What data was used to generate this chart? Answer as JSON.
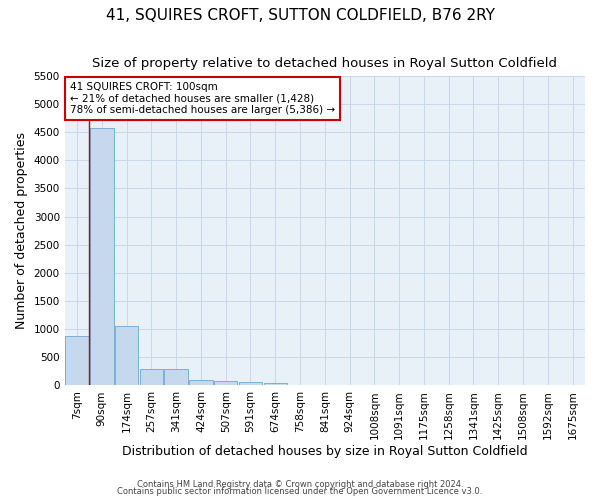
{
  "title": "41, SQUIRES CROFT, SUTTON COLDFIELD, B76 2RY",
  "subtitle": "Size of property relative to detached houses in Royal Sutton Coldfield",
  "xlabel": "Distribution of detached houses by size in Royal Sutton Coldfield",
  "ylabel": "Number of detached properties",
  "footnote1": "Contains HM Land Registry data © Crown copyright and database right 2024.",
  "footnote2": "Contains public sector information licensed under the Open Government Licence v3.0.",
  "bar_labels": [
    "7sqm",
    "90sqm",
    "174sqm",
    "257sqm",
    "341sqm",
    "424sqm",
    "507sqm",
    "591sqm",
    "674sqm",
    "758sqm",
    "841sqm",
    "924sqm",
    "1008sqm",
    "1091sqm",
    "1175sqm",
    "1258sqm",
    "1341sqm",
    "1425sqm",
    "1508sqm",
    "1592sqm",
    "1675sqm"
  ],
  "bar_values": [
    880,
    4570,
    1060,
    295,
    290,
    95,
    80,
    55,
    50,
    0,
    0,
    0,
    0,
    0,
    0,
    0,
    0,
    0,
    0,
    0,
    0
  ],
  "bar_color": "#c5d8ed",
  "bar_edge_color": "#7aafd4",
  "annotation_box_text": "41 SQUIRES CROFT: 100sqm\n← 21% of detached houses are smaller (1,428)\n78% of semi-detached houses are larger (5,386) →",
  "annotation_box_color": "#ffffff",
  "annotation_box_edge_color": "#cc0000",
  "property_line_color": "#cc0000",
  "ylim": [
    0,
    5500
  ],
  "yticks": [
    0,
    500,
    1000,
    1500,
    2000,
    2500,
    3000,
    3500,
    4000,
    4500,
    5000,
    5500
  ],
  "grid_color": "#c8d8e8",
  "background_color": "#e8f0f8",
  "title_fontsize": 11,
  "subtitle_fontsize": 9.5,
  "xlabel_fontsize": 9,
  "ylabel_fontsize": 9,
  "tick_fontsize": 7.5,
  "annot_fontsize": 7.5
}
